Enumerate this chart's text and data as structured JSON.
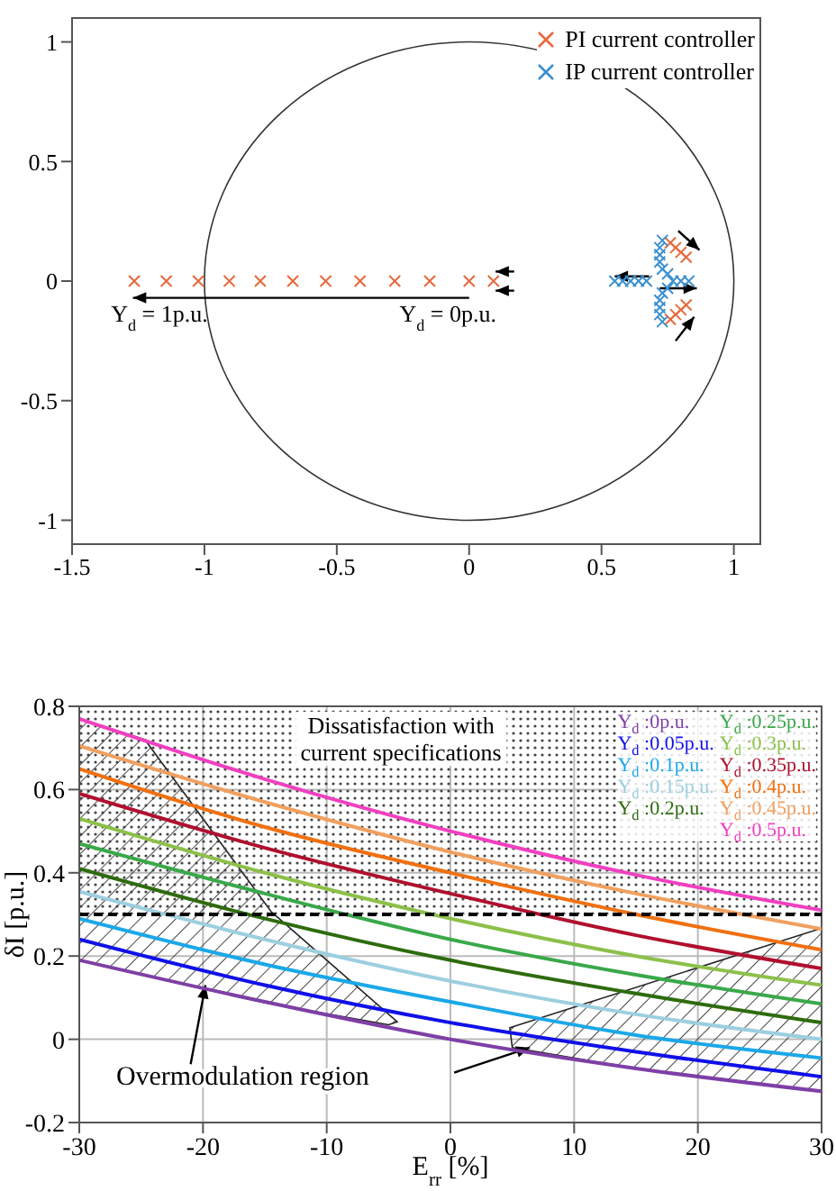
{
  "chart_data": [
    {
      "type": "scatter",
      "xlim": [
        -1.5,
        1.1
      ],
      "ylim": [
        -1.1,
        1.1
      ],
      "xticks": [
        -1.5,
        -1,
        -0.5,
        0,
        0.5,
        1
      ],
      "yticks": [
        -1,
        -0.5,
        0,
        0.5,
        1
      ],
      "legend": "top right",
      "marker": "cross",
      "annotations": [
        "Y$_{d}$ = 1p.u.",
        "Y$_{d}$ = 0p.u."
      ],
      "series": [
        {
          "name": "PI current controller",
          "color": "#e8683a",
          "x": [
            -1.265,
            -1.144,
            -1.023,
            -0.906,
            -0.789,
            -0.666,
            -0.542,
            -0.412,
            -0.281,
            -0.149,
            0,
            0.092,
            0.76,
            0.78,
            0.8,
            0.82,
            0.76,
            0.78,
            0.8,
            0.82
          ],
          "values": [
            0,
            0,
            0,
            0,
            0,
            0,
            0,
            0,
            0,
            0,
            0,
            0,
            0.16,
            0.14,
            0.12,
            0.1,
            -0.16,
            -0.14,
            -0.12,
            -0.1
          ]
        },
        {
          "name": "IP current controller",
          "color": "#3a90d0",
          "x": [
            0.55,
            0.58,
            0.61,
            0.64,
            0.67,
            0.77,
            0.8,
            0.83,
            0.73,
            0.72,
            0.72,
            0.72,
            0.73,
            0.73,
            0.72,
            0.72,
            0.72,
            0.73,
            0.75,
            0.75
          ],
          "values": [
            0,
            0,
            0,
            0,
            0,
            0,
            0,
            0,
            0.17,
            0.14,
            0.11,
            0.08,
            0.05,
            -0.05,
            -0.08,
            -0.11,
            -0.14,
            -0.17,
            0.03,
            -0.03
          ]
        }
      ]
    },
    {
      "type": "line",
      "xlabel": "E$_{rr}$ [%]",
      "ylabel": "δI [p.u.]",
      "xlim": [
        -30,
        30
      ],
      "ylim": [
        -0.2,
        0.8
      ],
      "xticks": [
        -30,
        -20,
        -10,
        0,
        10,
        20,
        30
      ],
      "yticks": [
        -0.2,
        0,
        0.2,
        0.4,
        0.6,
        0.8
      ],
      "grid": true,
      "legend": "top right",
      "marker": "none",
      "line_style": "solid",
      "annotations": [
        {
          "text": "Overmodulation region",
          "x": -19.8,
          "y": 0.13
        }
      ],
      "bands": [
        {
          "axis": "y",
          "from": 0.3,
          "to": 0.8,
          "label": "Dissatisfaction with\ncurrent specifications"
        }
      ],
      "ref_lines": [
        {
          "axis": "y",
          "value": 0.3,
          "color": "#000000",
          "line_style": "dashed"
        }
      ],
      "x": [
        -30,
        -15,
        0,
        15,
        30
      ],
      "series": [
        {
          "name": "Y$_{d}$ :0p.u.",
          "color": "#7e3fa6",
          "values": [
            0.19,
            0.09,
            0,
            -0.07,
            -0.125
          ]
        },
        {
          "name": "Y$_{d}$ :0.05p.u.",
          "color": "#1010e8",
          "values": [
            0.24,
            0.13,
            0.04,
            -0.03,
            -0.09
          ]
        },
        {
          "name": "Y$_{d}$ :0.1p.u.",
          "color": "#1aa8e8",
          "values": [
            0.29,
            0.18,
            0.09,
            0.01,
            -0.045
          ]
        },
        {
          "name": "Y$_{d}$ :0.15p.u.",
          "color": "#9ccfe0",
          "values": [
            0.355,
            0.24,
            0.14,
            0.06,
            0
          ]
        },
        {
          "name": "Y$_{d}$ :0.2p.u.",
          "color": "#2e6b0e",
          "values": [
            0.41,
            0.29,
            0.19,
            0.11,
            0.04
          ]
        },
        {
          "name": "Y$_{d}$ :0.25p.u.",
          "color": "#3aa84a",
          "values": [
            0.47,
            0.35,
            0.24,
            0.155,
            0.085
          ]
        },
        {
          "name": "Y$_{d}$ :0.3p.u.",
          "color": "#8cc04a",
          "values": [
            0.53,
            0.4,
            0.29,
            0.2,
            0.13
          ]
        },
        {
          "name": "Y$_{d}$ :0.35p.u.",
          "color": "#b0102e",
          "values": [
            0.59,
            0.46,
            0.35,
            0.25,
            0.17
          ]
        },
        {
          "name": "Y$_{d}$ :0.4p.u.",
          "color": "#f07010",
          "values": [
            0.65,
            0.51,
            0.4,
            0.3,
            0.215
          ]
        },
        {
          "name": "Y$_{d}$ :0.45p.u.",
          "color": "#f0a060",
          "values": [
            0.705,
            0.57,
            0.45,
            0.35,
            0.265
          ]
        },
        {
          "name": "Y$_{d}$ :0.5p.u.",
          "color": "#f040c0",
          "values": [
            0.77,
            0.625,
            0.5,
            0.395,
            0.31
          ]
        }
      ]
    }
  ]
}
